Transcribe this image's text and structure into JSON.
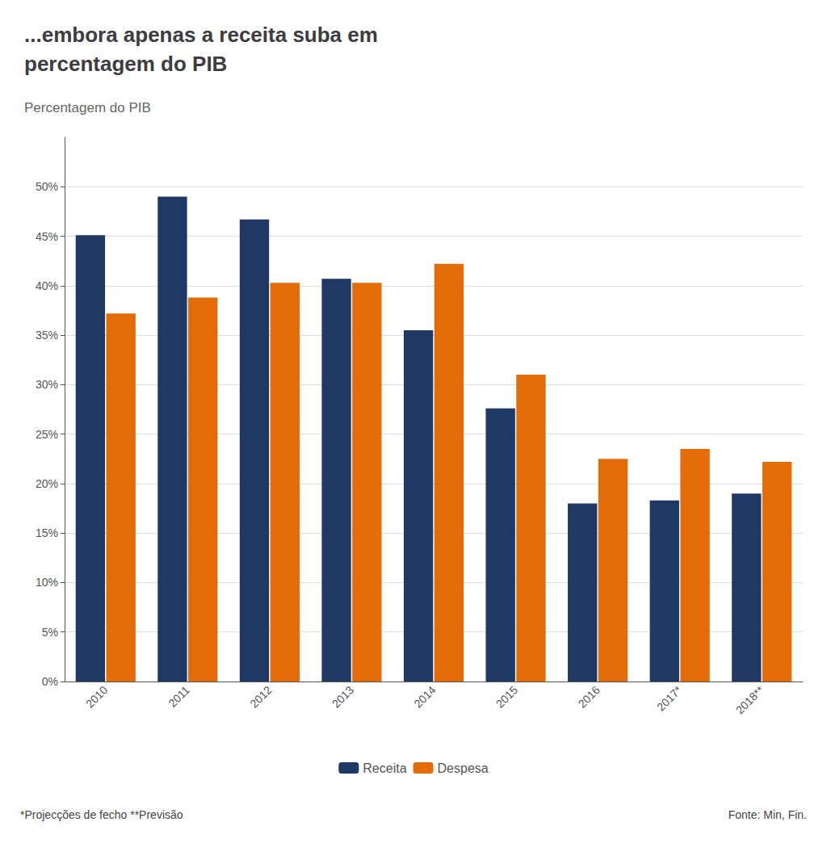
{
  "chart_data": {
    "type": "bar",
    "title": "...embora apenas a receita suba em\npercentagem do PIB",
    "subtitle": "Percentagem do PIB",
    "categories": [
      "2010",
      "2011",
      "2012",
      "2013",
      "2014",
      "2015",
      "2016",
      "2017*",
      "2018**"
    ],
    "series": [
      {
        "name": "Receita",
        "color": "#1F3864",
        "values": [
          45.1,
          49.0,
          46.7,
          40.7,
          35.5,
          27.6,
          18.0,
          18.3,
          19.0
        ]
      },
      {
        "name": "Despesa",
        "color": "#E36C09",
        "values": [
          37.2,
          38.8,
          40.3,
          40.3,
          42.2,
          31.0,
          22.5,
          23.5,
          22.2
        ]
      }
    ],
    "ylim": [
      0,
      55
    ],
    "yticks": [
      {
        "value": 0,
        "label": "0%"
      },
      {
        "value": 5,
        "label": "5%"
      },
      {
        "value": 10,
        "label": "10%"
      },
      {
        "value": 15,
        "label": "15%"
      },
      {
        "value": 20,
        "label": "20%"
      },
      {
        "value": 25,
        "label": "25%"
      },
      {
        "value": 30,
        "label": "30%"
      },
      {
        "value": 35,
        "label": "35%"
      },
      {
        "value": 40,
        "label": "40%"
      },
      {
        "value": 45,
        "label": "45%"
      },
      {
        "value": 50,
        "label": "50%"
      }
    ],
    "grid": true,
    "legend": "bottom",
    "annotations": [
      "*Projecções de fecho **Previsão",
      "Fonte: Min, Fin."
    ]
  }
}
